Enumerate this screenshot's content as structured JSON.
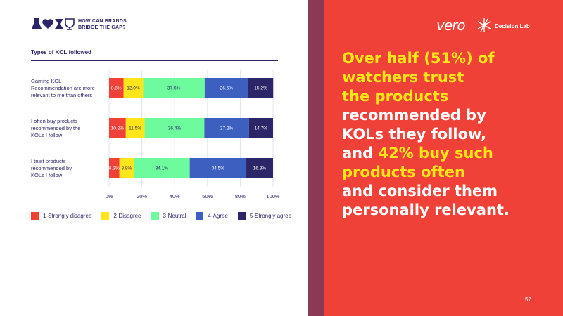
{
  "header": {
    "brand_line1": "HOW CAN BRANDS",
    "brand_line2": "BRIDGE THE GAP?"
  },
  "chart_title": "Types of KOL followed",
  "logos": {
    "vero": "vero",
    "decision_lab": "Decision Lab"
  },
  "headline": {
    "lines": [
      [
        {
          "text": "Over half (51%) of",
          "yellow": true
        }
      ],
      [
        {
          "text": "watchers trust",
          "yellow": true
        }
      ],
      [
        {
          "text": "the products",
          "yellow": true
        }
      ],
      [
        {
          "text": "recommended by",
          "yellow": false
        }
      ],
      [
        {
          "text": "KOLs they follow,",
          "yellow": false
        }
      ],
      [
        {
          "text": "and ",
          "yellow": false
        },
        {
          "text": "42% buy such",
          "yellow": true
        }
      ],
      [
        {
          "text": "products often",
          "yellow": true
        }
      ],
      [
        {
          "text": "and consider them",
          "yellow": false
        }
      ],
      [
        {
          "text": "personally relevant.",
          "yellow": false
        }
      ]
    ]
  },
  "page_number": "57",
  "colors": {
    "strongly_disagree": "#ef4137",
    "disagree": "#ffe51a",
    "neutral": "#6dfb9e",
    "agree": "#3c5fc0",
    "strongly_agree": "#2c2567",
    "background_right": "#ef4137",
    "highlight": "#ffe51a"
  },
  "chart_data": {
    "type": "bar",
    "orientation": "horizontal",
    "stacked": true,
    "title": "Types of KOL followed",
    "categories": [
      [
        "Gaming KOL",
        "Recommendation are more",
        "relevant to me than others"
      ],
      [
        "I often buy products",
        "recommended by the",
        "KOLs I follow"
      ],
      [
        "I trust products",
        "recommended by",
        "KOLs I follow"
      ]
    ],
    "series": [
      {
        "name": "1-Strongly disagree",
        "color": "#ef4137",
        "values": [
          8.8,
          10.2,
          6.3
        ],
        "labels": [
          "8.8%",
          "10.2%",
          "6.3%"
        ]
      },
      {
        "name": "2-Disagree",
        "color": "#ffe51a",
        "values": [
          12.0,
          11.5,
          8.8
        ],
        "labels": [
          "12.0%",
          "11.5%",
          "8.8%"
        ]
      },
      {
        "name": "3-Neutral",
        "color": "#6dfb9e",
        "values": [
          37.5,
          36.4,
          34.1
        ],
        "labels": [
          "37.5%",
          "36.4%",
          "34.1%"
        ]
      },
      {
        "name": "4-Agree",
        "color": "#3c5fc0",
        "values": [
          26.6,
          27.2,
          34.5
        ],
        "labels": [
          "26.6%",
          "27.2%",
          "34.5%"
        ]
      },
      {
        "name": "5-Strongly agree",
        "color": "#2c2567",
        "values": [
          15.2,
          14.7,
          16.3
        ],
        "labels": [
          "15.2%",
          "14.7%",
          "16.3%"
        ]
      }
    ],
    "xlim": [
      0,
      100
    ],
    "x_ticks": [
      "0%",
      "20%",
      "40%",
      "60%",
      "80%",
      "100%"
    ],
    "grid": true,
    "legend_position": "bottom"
  }
}
